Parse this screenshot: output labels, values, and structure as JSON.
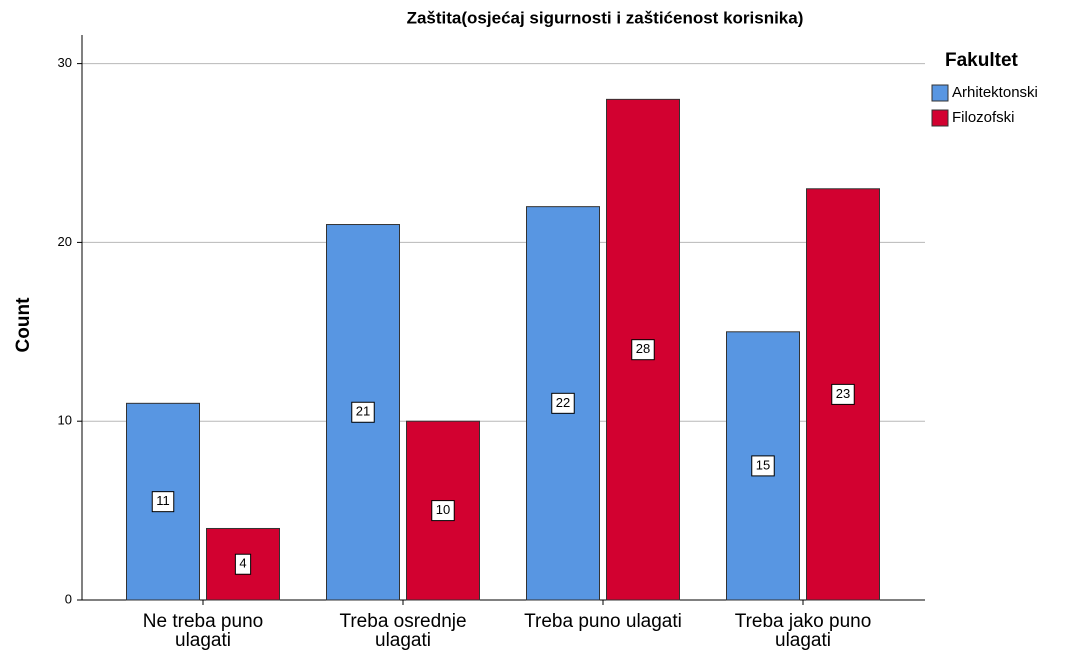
{
  "chart_data": {
    "type": "bar",
    "title": "Zaštita(osjećaj sigurnosti i zaštićenost korisnika)",
    "y_label": "Count",
    "legend_title": "Fakultet",
    "legend_position": "right",
    "categories": [
      "Ne treba puno ulagati",
      "Treba osrednje ulagati",
      "Treba puno ulagati",
      "Treba jako puno ulagati"
    ],
    "series": [
      {
        "name": "Arhitektonski",
        "color": "#5896e2",
        "values": [
          11,
          21,
          22,
          15
        ]
      },
      {
        "name": "Filozofski",
        "color": "#d20130",
        "values": [
          4,
          10,
          28,
          23
        ]
      }
    ],
    "ylim": [
      0,
      31.6
    ],
    "yticks": [
      0,
      10,
      20,
      30
    ],
    "grid": true
  }
}
